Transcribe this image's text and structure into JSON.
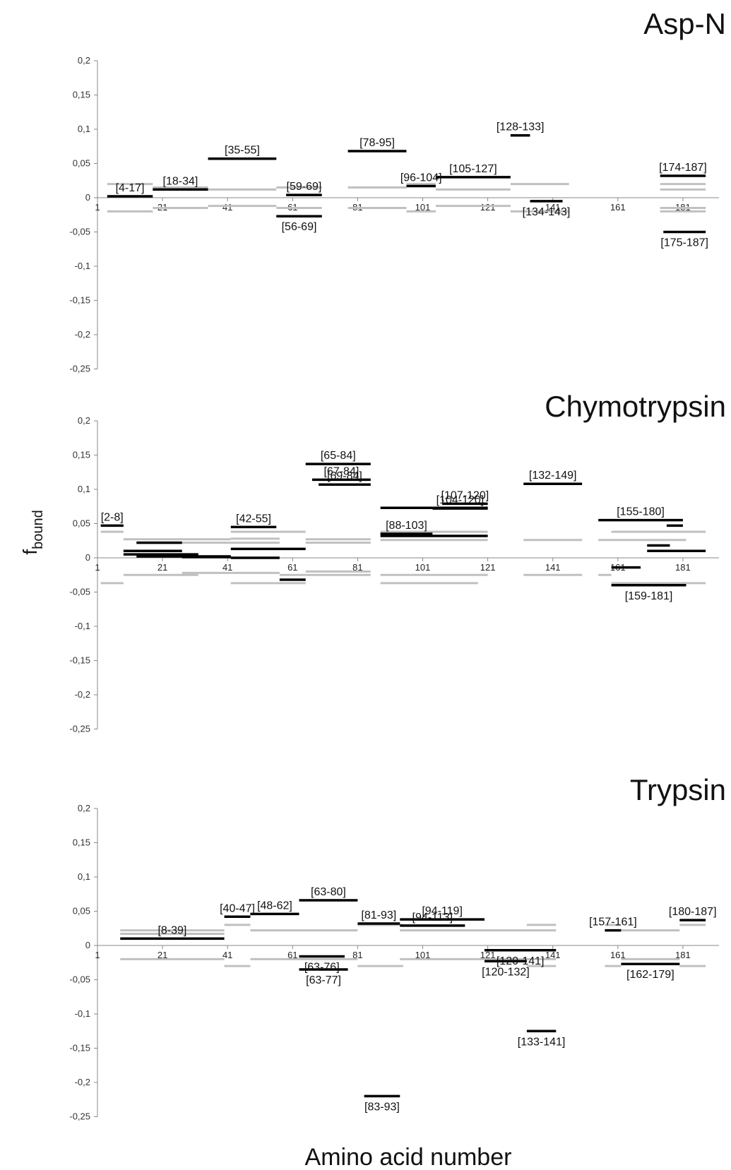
{
  "figure": {
    "ylabel_main": "f",
    "ylabel_sub": "bound",
    "xlabel": "Amino acid number"
  },
  "chart_data": [
    {
      "type": "bar",
      "title": "Asp-N",
      "ylim": [
        -0.25,
        0.2
      ],
      "xlim": [
        1,
        190
      ],
      "yticks": [
        "0,2",
        "0,15",
        "0,1",
        "0,05",
        "0",
        "-0,05",
        "-0,1",
        "-0,15",
        "-0,2",
        "-0,25"
      ],
      "xticks": [
        "1",
        "21",
        "41",
        "61",
        "81",
        "101",
        "121",
        "141",
        "161",
        "181"
      ],
      "series": [
        {
          "name": "",
          "color": "#000000",
          "segments": [
            {
              "start": 4,
              "end": 17,
              "value": 0.002,
              "label": "[4-17]"
            },
            {
              "start": 18,
              "end": 34,
              "value": 0.012,
              "label": "[18-34]"
            },
            {
              "start": 35,
              "end": 55,
              "value": 0.057,
              "label": "[35-55]"
            },
            {
              "start": 59,
              "end": 69,
              "value": 0.004,
              "label": "[59-69]"
            },
            {
              "start": 56,
              "end": 69,
              "value": -0.027,
              "label": "[56-69]"
            },
            {
              "start": 78,
              "end": 95,
              "value": 0.068,
              "label": "[78-95]"
            },
            {
              "start": 96,
              "end": 104,
              "value": 0.017,
              "label": "[96-104]"
            },
            {
              "start": 105,
              "end": 127,
              "value": 0.03,
              "label": "[105-127]"
            },
            {
              "start": 128,
              "end": 133,
              "value": 0.091,
              "label": "[128-133]"
            },
            {
              "start": 134,
              "end": 143,
              "value": -0.005,
              "label": "[134-143]"
            },
            {
              "start": 174,
              "end": 187,
              "value": 0.032,
              "label": "[174-187]"
            },
            {
              "start": 175,
              "end": 187,
              "value": -0.05,
              "label": "[175-187]"
            }
          ]
        },
        {
          "name": "",
          "color": "#c0c0c0",
          "segments": [
            {
              "start": 4,
              "end": 17,
              "value": 0.02
            },
            {
              "start": 4,
              "end": 17,
              "value": -0.02
            },
            {
              "start": 18,
              "end": 34,
              "value": 0.015
            },
            {
              "start": 18,
              "end": 34,
              "value": -0.015
            },
            {
              "start": 35,
              "end": 55,
              "value": 0.012
            },
            {
              "start": 35,
              "end": 55,
              "value": -0.012
            },
            {
              "start": 56,
              "end": 69,
              "value": 0.015
            },
            {
              "start": 56,
              "end": 69,
              "value": -0.015
            },
            {
              "start": 78,
              "end": 95,
              "value": 0.015
            },
            {
              "start": 78,
              "end": 95,
              "value": -0.015
            },
            {
              "start": 96,
              "end": 104,
              "value": 0.02
            },
            {
              "start": 96,
              "end": 104,
              "value": -0.02
            },
            {
              "start": 105,
              "end": 127,
              "value": 0.012
            },
            {
              "start": 105,
              "end": 127,
              "value": -0.012
            },
            {
              "start": 128,
              "end": 145,
              "value": 0.02
            },
            {
              "start": 128,
              "end": 145,
              "value": -0.02
            },
            {
              "start": 174,
              "end": 187,
              "value": 0.02
            },
            {
              "start": 174,
              "end": 187,
              "value": 0.012
            },
            {
              "start": 174,
              "end": 187,
              "value": -0.015
            },
            {
              "start": 174,
              "end": 187,
              "value": -0.02
            }
          ]
        }
      ]
    },
    {
      "type": "bar",
      "title": "Chymotrypsin",
      "ylim": [
        -0.25,
        0.2
      ],
      "xlim": [
        1,
        190
      ],
      "yticks": [
        "0,2",
        "0,15",
        "0,1",
        "0,05",
        "0",
        "-0,05",
        "-0,1",
        "-0,15",
        "-0,2",
        "-0,25"
      ],
      "xticks": [
        "1",
        "21",
        "41",
        "61",
        "81",
        "101",
        "121",
        "141",
        "161",
        "181"
      ],
      "series": [
        {
          "name": "",
          "color": "#000000",
          "segments": [
            {
              "start": 2,
              "end": 8,
              "value": 0.047,
              "label": "[2-8]"
            },
            {
              "start": 9,
              "end": 26,
              "value": 0.01
            },
            {
              "start": 9,
              "end": 31,
              "value": 0.005
            },
            {
              "start": 13,
              "end": 26,
              "value": 0.022
            },
            {
              "start": 13,
              "end": 41,
              "value": 0.002
            },
            {
              "start": 27,
              "end": 41,
              "value": 0.001
            },
            {
              "start": 42,
              "end": 55,
              "value": 0.045,
              "label": "[42-55]"
            },
            {
              "start": 42,
              "end": 64,
              "value": 0.013
            },
            {
              "start": 42,
              "end": 56,
              "value": 0.0
            },
            {
              "start": 57,
              "end": 64,
              "value": -0.032
            },
            {
              "start": 65,
              "end": 84,
              "value": 0.137,
              "label": "[65-84]"
            },
            {
              "start": 67,
              "end": 84,
              "value": 0.114,
              "label": "[67-84]"
            },
            {
              "start": 69,
              "end": 84,
              "value": 0.107,
              "label": "[69-84]"
            },
            {
              "start": 88,
              "end": 120,
              "value": 0.073
            },
            {
              "start": 88,
              "end": 103,
              "value": 0.035,
              "label": "[88-103]"
            },
            {
              "start": 88,
              "end": 120,
              "value": 0.032
            },
            {
              "start": 104,
              "end": 120,
              "value": 0.072,
              "label": "[104-120]"
            },
            {
              "start": 107,
              "end": 120,
              "value": 0.079,
              "label": "[107-120]"
            },
            {
              "start": 132,
              "end": 149,
              "value": 0.108,
              "label": "[132-149]"
            },
            {
              "start": 155,
              "end": 180,
              "value": 0.055,
              "label": "[155-180]"
            },
            {
              "start": 176,
              "end": 180,
              "value": 0.047
            },
            {
              "start": 170,
              "end": 176,
              "value": 0.018
            },
            {
              "start": 170,
              "end": 187,
              "value": 0.01
            },
            {
              "start": 159,
              "end": 167,
              "value": -0.014
            },
            {
              "start": 159,
              "end": 181,
              "value": -0.04,
              "label": "[159-181]"
            }
          ]
        },
        {
          "name": "",
          "color": "#c0c0c0",
          "segments": [
            {
              "start": 2,
              "end": 8,
              "value": 0.038
            },
            {
              "start": 2,
              "end": 8,
              "value": -0.037
            },
            {
              "start": 9,
              "end": 41,
              "value": 0.027
            },
            {
              "start": 9,
              "end": 31,
              "value": -0.025
            },
            {
              "start": 27,
              "end": 41,
              "value": 0.022
            },
            {
              "start": 27,
              "end": 56,
              "value": -0.022
            },
            {
              "start": 42,
              "end": 64,
              "value": 0.038
            },
            {
              "start": 42,
              "end": 56,
              "value": 0.028
            },
            {
              "start": 42,
              "end": 56,
              "value": 0.022
            },
            {
              "start": 42,
              "end": 64,
              "value": -0.037
            },
            {
              "start": 57,
              "end": 64,
              "value": -0.025
            },
            {
              "start": 65,
              "end": 84,
              "value": 0.027
            },
            {
              "start": 65,
              "end": 84,
              "value": 0.022
            },
            {
              "start": 65,
              "end": 84,
              "value": -0.02
            },
            {
              "start": 65,
              "end": 84,
              "value": -0.025
            },
            {
              "start": 88,
              "end": 120,
              "value": 0.038
            },
            {
              "start": 88,
              "end": 120,
              "value": 0.026
            },
            {
              "start": 88,
              "end": 120,
              "value": -0.025
            },
            {
              "start": 88,
              "end": 117,
              "value": -0.037
            },
            {
              "start": 132,
              "end": 149,
              "value": 0.026
            },
            {
              "start": 132,
              "end": 149,
              "value": -0.025
            },
            {
              "start": 155,
              "end": 181,
              "value": 0.026
            },
            {
              "start": 155,
              "end": 158,
              "value": -0.025
            },
            {
              "start": 159,
              "end": 187,
              "value": 0.038
            },
            {
              "start": 159,
              "end": 187,
              "value": -0.037
            }
          ]
        }
      ]
    },
    {
      "type": "bar",
      "title": "Trypsin",
      "ylim": [
        -0.25,
        0.2
      ],
      "xlim": [
        1,
        190
      ],
      "yticks": [
        "0,2",
        "0,15",
        "0,1",
        "0,05",
        "0",
        "-0,05",
        "-0,1",
        "-0,15",
        "-0,2",
        "-0,25"
      ],
      "xticks": [
        "1",
        "21",
        "41",
        "61",
        "81",
        "101",
        "121",
        "141",
        "161",
        "181"
      ],
      "series": [
        {
          "name": "",
          "color": "#000000",
          "segments": [
            {
              "start": 8,
              "end": 39,
              "value": 0.01,
              "label": "[8-39]"
            },
            {
              "start": 40,
              "end": 47,
              "value": 0.042,
              "label": "[40-47]"
            },
            {
              "start": 48,
              "end": 62,
              "value": 0.046,
              "label": "[48-62]"
            },
            {
              "start": 63,
              "end": 80,
              "value": 0.066,
              "label": "[63-80]"
            },
            {
              "start": 63,
              "end": 76,
              "value": -0.016,
              "label": "[63-76]"
            },
            {
              "start": 63,
              "end": 77,
              "value": -0.035,
              "label": "[63-77]"
            },
            {
              "start": 83,
              "end": 93,
              "value": -0.22,
              "label": "[83-93]"
            },
            {
              "start": 81,
              "end": 93,
              "value": 0.032,
              "label": "[81-93]"
            },
            {
              "start": 94,
              "end": 119,
              "value": 0.038,
              "label": "[94-119]"
            },
            {
              "start": 94,
              "end": 113,
              "value": 0.029,
              "label": "[94-113]"
            },
            {
              "start": 120,
              "end": 141,
              "value": -0.007,
              "label": "[120-141]"
            },
            {
              "start": 120,
              "end": 132,
              "value": -0.023,
              "label": "[120-132]"
            },
            {
              "start": 133,
              "end": 141,
              "value": -0.125,
              "label": "[133-141]"
            },
            {
              "start": 157,
              "end": 161,
              "value": 0.022,
              "label": "[157-161]"
            },
            {
              "start": 162,
              "end": 179,
              "value": -0.027,
              "label": "[162-179]"
            },
            {
              "start": 180,
              "end": 187,
              "value": 0.037,
              "label": "[180-187]"
            }
          ]
        },
        {
          "name": "",
          "color": "#c0c0c0",
          "segments": [
            {
              "start": 8,
              "end": 39,
              "value": 0.022
            },
            {
              "start": 8,
              "end": 39,
              "value": 0.017
            },
            {
              "start": 8,
              "end": 39,
              "value": -0.02
            },
            {
              "start": 40,
              "end": 47,
              "value": 0.03
            },
            {
              "start": 40,
              "end": 47,
              "value": -0.03
            },
            {
              "start": 48,
              "end": 80,
              "value": 0.022
            },
            {
              "start": 48,
              "end": 80,
              "value": -0.02
            },
            {
              "start": 81,
              "end": 94,
              "value": -0.03
            },
            {
              "start": 81,
              "end": 94,
              "value": 0.03
            },
            {
              "start": 94,
              "end": 141,
              "value": 0.022
            },
            {
              "start": 94,
              "end": 141,
              "value": -0.02
            },
            {
              "start": 133,
              "end": 141,
              "value": 0.03
            },
            {
              "start": 133,
              "end": 141,
              "value": -0.03
            },
            {
              "start": 157,
              "end": 161,
              "value": 0.03
            },
            {
              "start": 157,
              "end": 161,
              "value": -0.03
            },
            {
              "start": 162,
              "end": 179,
              "value": 0.022
            },
            {
              "start": 162,
              "end": 179,
              "value": -0.02
            },
            {
              "start": 180,
              "end": 187,
              "value": 0.03
            },
            {
              "start": 180,
              "end": 187,
              "value": -0.03
            }
          ]
        }
      ]
    }
  ]
}
